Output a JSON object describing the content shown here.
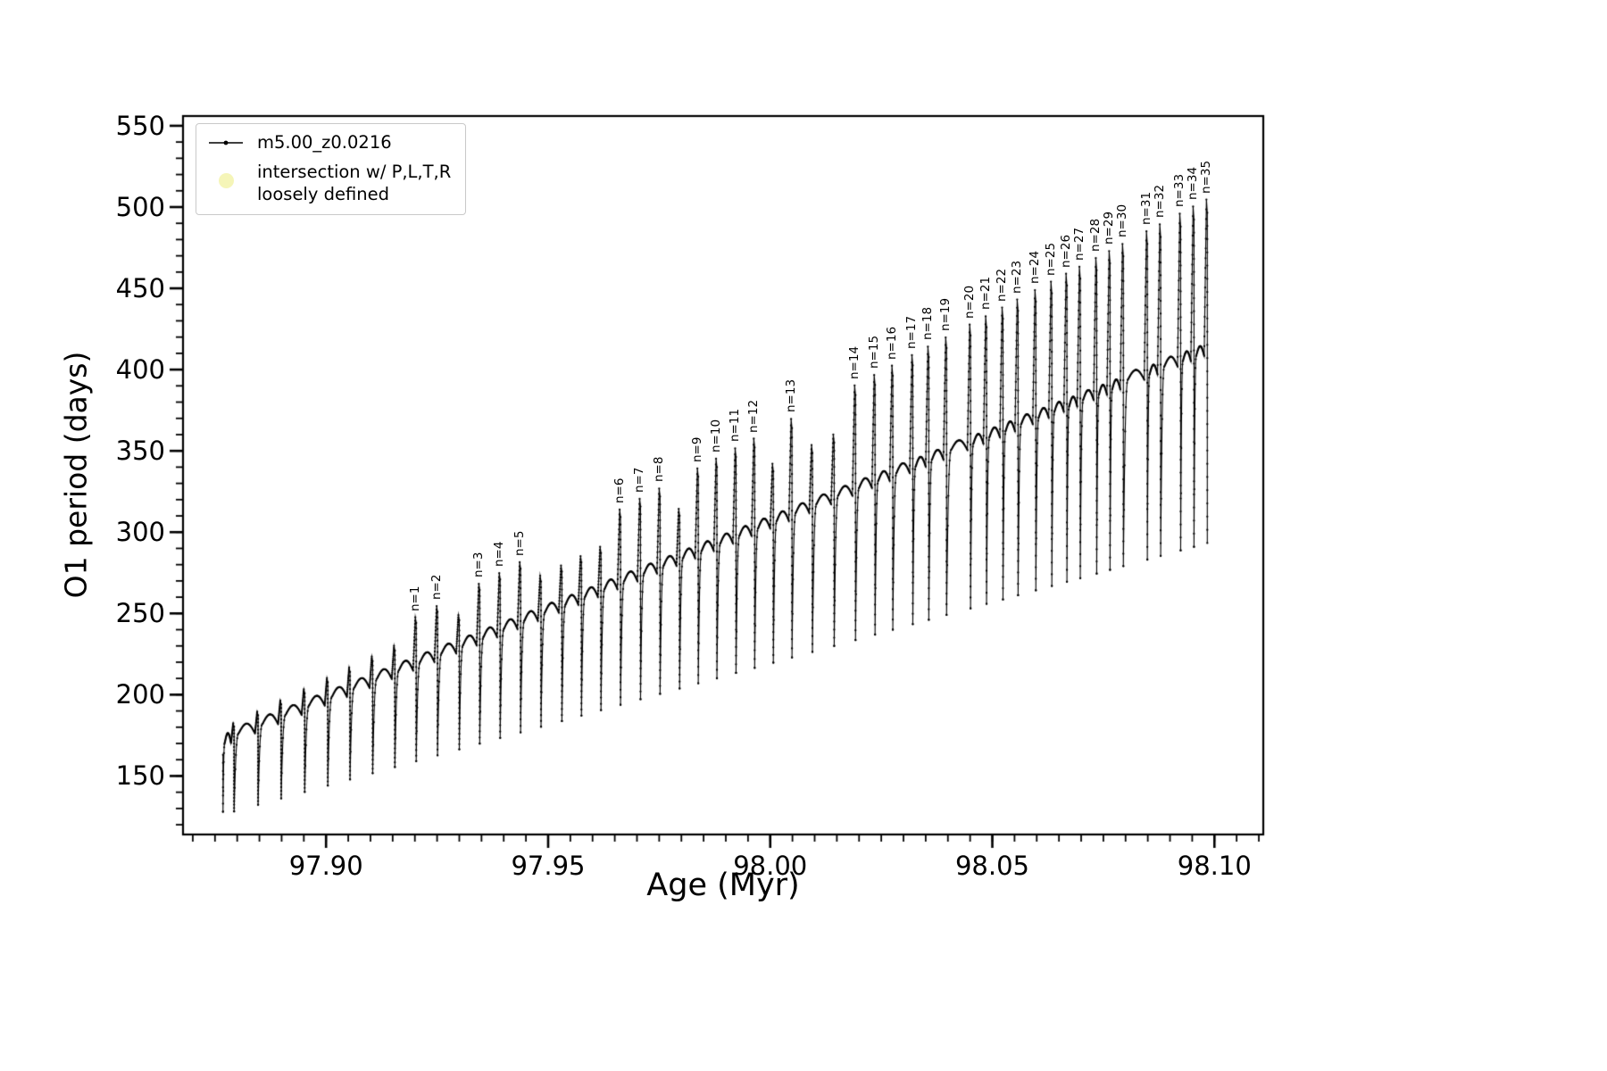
{
  "figure": {
    "background": "#ffffff"
  },
  "legend": {
    "series1_label": "m5.00_z0.0216",
    "series1_color": "#000000",
    "series2_label_line1": "intersection w/ P,L,T,R",
    "series2_label_line2": "loosely defined",
    "series2_color": "#f5f5b8"
  },
  "chart_data": {
    "type": "line",
    "title": "",
    "xlabel": "Age (Myr)",
    "ylabel": "O1 period (days)",
    "series_label": "m5.00_z0.0216",
    "line_color": "#000000",
    "grid": false,
    "legend_position": "upper left",
    "xlim": [
      97.8678,
      98.111
    ],
    "ylim": [
      114,
      556
    ],
    "xticks": [
      97.9,
      97.95,
      98.0,
      98.05,
      98.1
    ],
    "xtick_labels": [
      "97.90",
      "97.95",
      "98.00",
      "98.05",
      "98.10"
    ],
    "yticks": [
      150,
      200,
      250,
      300,
      350,
      400,
      450,
      500,
      550
    ],
    "ytick_labels": [
      "150",
      "200",
      "250",
      "300",
      "350",
      "400",
      "450",
      "500",
      "550"
    ],
    "x_minor_step": 0.005,
    "y_minor_step": 10,
    "x_start": 97.8768,
    "start_value": 163,
    "start_min": 128,
    "teeth": [
      {
        "x": 97.8793,
        "t": 176.3,
        "m": 128.2,
        "s": 182.4,
        "n": null
      },
      {
        "x": 97.8847,
        "t": 182.2,
        "m": 132.3,
        "s": 189.5,
        "n": null
      },
      {
        "x": 97.8899,
        "t": 187.9,
        "m": 136.2,
        "s": 196.4,
        "n": null
      },
      {
        "x": 97.8952,
        "t": 193.6,
        "m": 140.2,
        "s": 203.3,
        "n": null
      },
      {
        "x": 97.9004,
        "t": 199.3,
        "m": 144.1,
        "s": 210.2,
        "n": null
      },
      {
        "x": 97.9054,
        "t": 204.7,
        "m": 147.9,
        "s": 216.7,
        "n": null
      },
      {
        "x": 97.9105,
        "t": 210.2,
        "m": 151.7,
        "s": 223.4,
        "n": null
      },
      {
        "x": 97.9155,
        "t": 215.7,
        "m": 155.5,
        "s": 230.0,
        "n": null
      },
      {
        "x": 97.9203,
        "t": 220.9,
        "m": 159.1,
        "s": 247.6,
        "n": "n=1"
      },
      {
        "x": 97.9251,
        "t": 226.1,
        "m": 162.7,
        "s": 254.5,
        "n": "n=2"
      },
      {
        "x": 97.93,
        "t": 231.4,
        "m": 166.4,
        "s": 249.0,
        "n": null
      },
      {
        "x": 97.9346,
        "t": 236.4,
        "m": 169.9,
        "s": 268.2,
        "n": "n=3"
      },
      {
        "x": 97.9392,
        "t": 241.4,
        "m": 173.4,
        "s": 274.8,
        "n": "n=4"
      },
      {
        "x": 97.9438,
        "t": 246.4,
        "m": 176.8,
        "s": 281.5,
        "n": "n=5"
      },
      {
        "x": 97.9484,
        "t": 251.4,
        "m": 180.3,
        "s": 273.2,
        "n": null
      },
      {
        "x": 97.9531,
        "t": 256.5,
        "m": 183.8,
        "s": 279.4,
        "n": null
      },
      {
        "x": 97.9575,
        "t": 261.3,
        "m": 187.1,
        "s": 285.2,
        "n": null
      },
      {
        "x": 97.9619,
        "t": 266.1,
        "m": 190.5,
        "s": 291.0,
        "n": null
      },
      {
        "x": 97.9663,
        "t": 270.9,
        "m": 193.8,
        "s": 313.9,
        "n": "n=6"
      },
      {
        "x": 97.9708,
        "t": 275.8,
        "m": 197.2,
        "s": 320.5,
        "n": "n=7"
      },
      {
        "x": 97.9752,
        "t": 280.6,
        "m": 200.5,
        "s": 326.8,
        "n": "n=8"
      },
      {
        "x": 97.9796,
        "t": 285.3,
        "m": 203.8,
        "s": 314.3,
        "n": null
      },
      {
        "x": 97.9838,
        "t": 289.9,
        "m": 207.0,
        "s": 339.2,
        "n": "n=9"
      },
      {
        "x": 97.988,
        "t": 294.4,
        "m": 210.1,
        "s": 345.2,
        "n": "n=10"
      },
      {
        "x": 97.9923,
        "t": 299.1,
        "m": 213.4,
        "s": 351.5,
        "n": "n=11"
      },
      {
        "x": 97.9965,
        "t": 303.7,
        "m": 216.5,
        "s": 357.5,
        "n": "n=12"
      },
      {
        "x": 98.0007,
        "t": 308.3,
        "m": 219.7,
        "s": 342.1,
        "n": null
      },
      {
        "x": 98.0049,
        "t": 312.8,
        "m": 222.9,
        "s": 369.6,
        "n": "n=13"
      },
      {
        "x": 98.0095,
        "t": 317.8,
        "m": 226.3,
        "s": 353.6,
        "n": null
      },
      {
        "x": 98.0144,
        "t": 323.2,
        "m": 230.0,
        "s": 360.1,
        "n": null
      },
      {
        "x": 98.0192,
        "t": 328.4,
        "m": 233.6,
        "s": 390.3,
        "n": "n=14"
      },
      {
        "x": 98.0236,
        "t": 333.2,
        "m": 237.0,
        "s": 396.7,
        "n": "n=15"
      },
      {
        "x": 98.0276,
        "t": 337.5,
        "m": 240.0,
        "s": 402.4,
        "n": "n=16"
      },
      {
        "x": 98.0321,
        "t": 342.4,
        "m": 243.4,
        "s": 408.9,
        "n": "n=17"
      },
      {
        "x": 98.0357,
        "t": 346.3,
        "m": 246.1,
        "s": 414.1,
        "n": "n=18"
      },
      {
        "x": 98.0397,
        "t": 350.6,
        "m": 249.1,
        "s": 419.8,
        "n": "n=19"
      },
      {
        "x": 98.0451,
        "t": 356.5,
        "m": 253.1,
        "s": 427.7,
        "n": "n=20"
      },
      {
        "x": 98.0487,
        "t": 360.4,
        "m": 255.9,
        "s": 432.8,
        "n": "n=21"
      },
      {
        "x": 98.0524,
        "t": 364.4,
        "m": 258.6,
        "s": 438.2,
        "n": "n=22"
      },
      {
        "x": 98.0558,
        "t": 368.1,
        "m": 261.2,
        "s": 443.1,
        "n": "n=23"
      },
      {
        "x": 98.0598,
        "t": 372.5,
        "m": 264.2,
        "s": 448.9,
        "n": "n=24"
      },
      {
        "x": 98.0634,
        "t": 376.4,
        "m": 266.9,
        "s": 454.1,
        "n": "n=25"
      },
      {
        "x": 98.0668,
        "t": 380.1,
        "m": 269.5,
        "s": 459.0,
        "n": "n=26"
      },
      {
        "x": 98.0698,
        "t": 383.3,
        "m": 271.7,
        "s": 463.3,
        "n": "n=27"
      },
      {
        "x": 98.0735,
        "t": 387.4,
        "m": 274.5,
        "s": 468.6,
        "n": "n=28"
      },
      {
        "x": 98.0765,
        "t": 390.6,
        "m": 276.8,
        "s": 472.9,
        "n": "n=29"
      },
      {
        "x": 98.0795,
        "t": 393.9,
        "m": 279.1,
        "s": 477.3,
        "n": "n=30"
      },
      {
        "x": 98.0849,
        "t": 399.8,
        "m": 283.1,
        "s": 485.1,
        "n": "n=31"
      },
      {
        "x": 98.0879,
        "t": 403.0,
        "m": 285.4,
        "s": 489.4,
        "n": "n=32"
      },
      {
        "x": 98.0924,
        "t": 407.9,
        "m": 288.8,
        "s": 495.9,
        "n": "n=33"
      },
      {
        "x": 98.0954,
        "t": 411.2,
        "m": 291.0,
        "s": 500.3,
        "n": "n=34"
      },
      {
        "x": 98.0984,
        "t": 414.4,
        "m": 293.3,
        "s": 504.6,
        "n": "n=35"
      }
    ]
  }
}
